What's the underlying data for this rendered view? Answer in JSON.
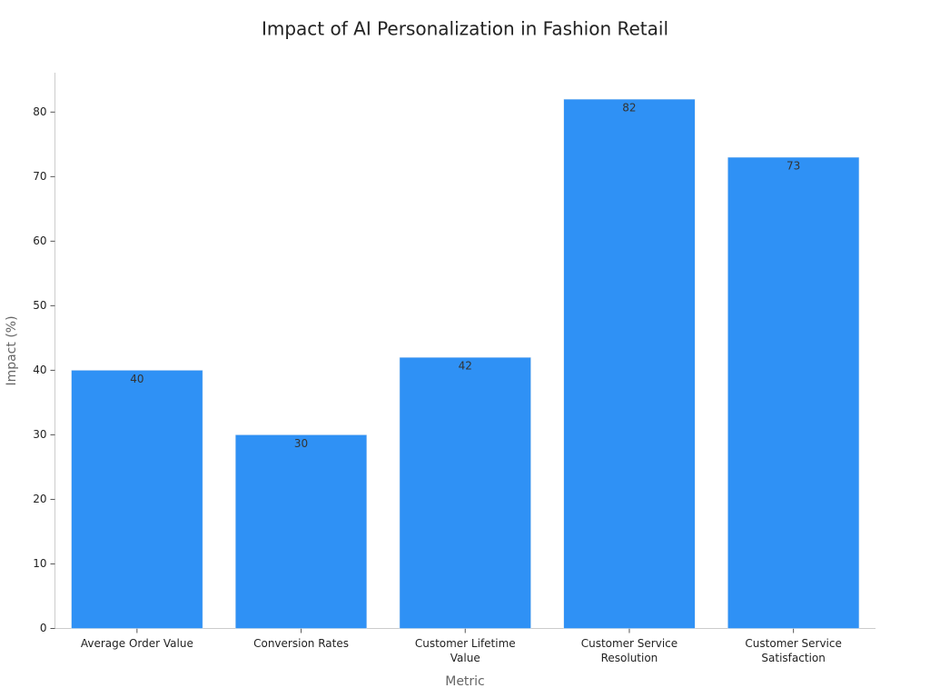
{
  "chart_data": {
    "type": "bar",
    "title": "Impact of AI Personalization in Fashion Retail",
    "x_label": "Metric",
    "y_label": "Impact (%)",
    "categories": [
      "Average Order Value",
      "Conversion Rates",
      "Customer Lifetime Value",
      "Customer Service Resolution",
      "Customer Service Satisfaction"
    ],
    "values": [
      40,
      30,
      42,
      82,
      73
    ],
    "color": "#2f91f5",
    "ylim": [
      0,
      86.1
    ],
    "yticks": [
      0,
      10,
      20,
      30,
      40,
      50,
      60,
      70,
      80
    ],
    "grid": false
  }
}
